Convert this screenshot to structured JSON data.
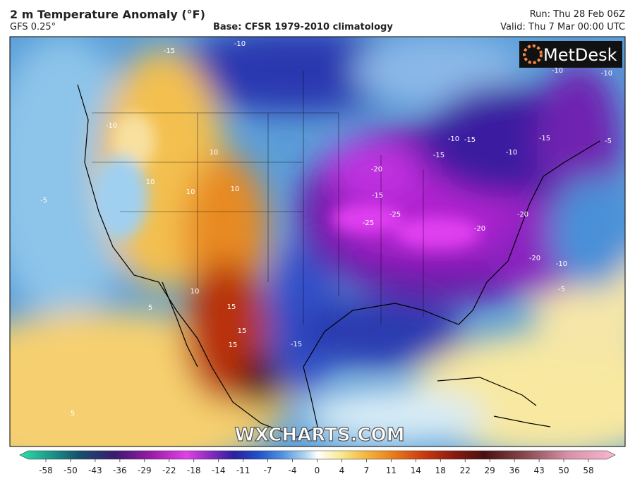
{
  "header": {
    "title": "2 m Temperature Anomaly (°F)",
    "model": "GFS 0.25°",
    "base": "Base: CFSR 1979-2010 climatology",
    "run": "Run: Thu 28 Feb 06Z",
    "valid": "Valid: Thu 7 Mar 00:00 UTC"
  },
  "logo": "MetDesk",
  "watermark": "WXCHARTS.COM",
  "map": {
    "labels": [
      -10,
      -15,
      -10,
      -5,
      -10,
      10,
      10,
      10,
      10,
      10,
      15,
      15,
      15,
      5,
      5,
      -20,
      -15,
      -25,
      -25,
      -20,
      -20,
      -20,
      -15,
      -15,
      -10,
      -10,
      -15,
      -10,
      -5,
      -10,
      -5,
      -15
    ]
  },
  "colorbar": {
    "ticks": [
      -58,
      -50,
      -43,
      -36,
      -29,
      -22,
      -18,
      -14,
      -11,
      -7,
      -4,
      0,
      4,
      7,
      11,
      14,
      18,
      22,
      29,
      36,
      43,
      50,
      58
    ]
  }
}
